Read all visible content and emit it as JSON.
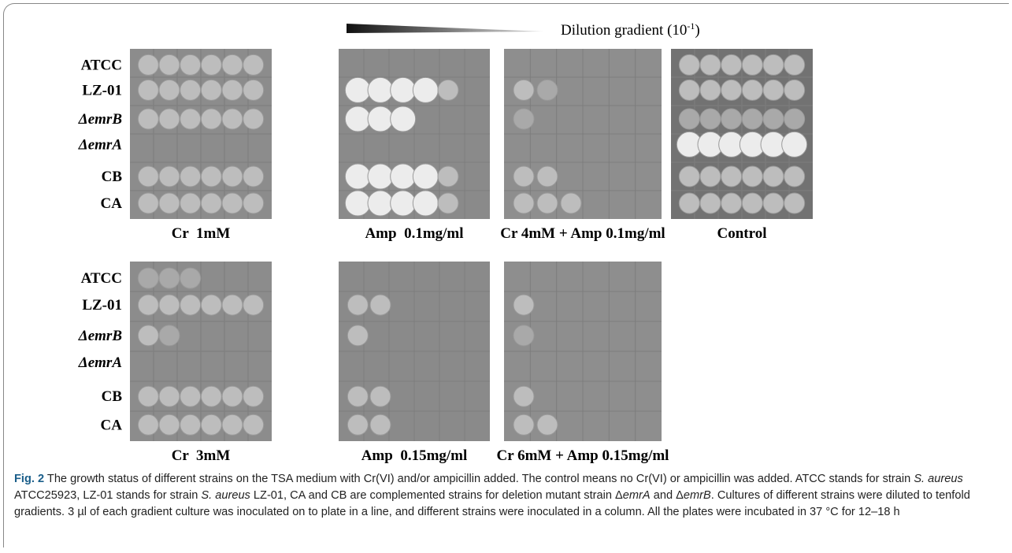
{
  "figure": {
    "gradient": {
      "label": "Dilution gradient (10",
      "exponent": "-1",
      "close": ")"
    },
    "strains": [
      "ATCC",
      "LZ-01",
      "ΔemrB",
      "ΔemrA",
      "CB",
      "CA"
    ],
    "plates": [
      {
        "label": "Cr  1mM"
      },
      {
        "label": "Amp  0.1mg/ml"
      },
      {
        "label": "Cr 4mM + Amp 0.1mg/ml"
      },
      {
        "label": "Control"
      },
      {
        "label": "Cr  3mM"
      },
      {
        "label": "Amp  0.15mg/ml"
      },
      {
        "label": "Cr 6mM + Amp 0.15mg/ml"
      }
    ],
    "caption": [
      {
        "text": "Fig. 2",
        "style": "bold"
      },
      {
        "text": "  The growth status of different strains on the TSA medium with Cr(VI) and/or ampicillin added. The control means no Cr(VI) or ampicillin was added. ATCC stands for strain ",
        "style": "normal"
      },
      {
        "text": "S. aureus",
        "style": "italic"
      },
      {
        "text": " ATCC25923, LZ-01 stands for strain ",
        "style": "normal"
      },
      {
        "text": "S. aureus",
        "style": "italic"
      },
      {
        "text": " LZ-01, CA and CB are complemented strains for deletion mutant strain Δ",
        "style": "normal"
      },
      {
        "text": "emrA",
        "style": "italic"
      },
      {
        "text": " and Δ",
        "style": "normal"
      },
      {
        "text": "emrB",
        "style": "italic"
      },
      {
        "text": ". Cultures of different strains were diluted to tenfold gradients. 3 µl of each gradient culture was inoculated on to plate in a line, and different strains were inoculated in a column. All the plates were incubated in 37 °C for 12–18 h",
        "style": "normal"
      }
    ]
  }
}
